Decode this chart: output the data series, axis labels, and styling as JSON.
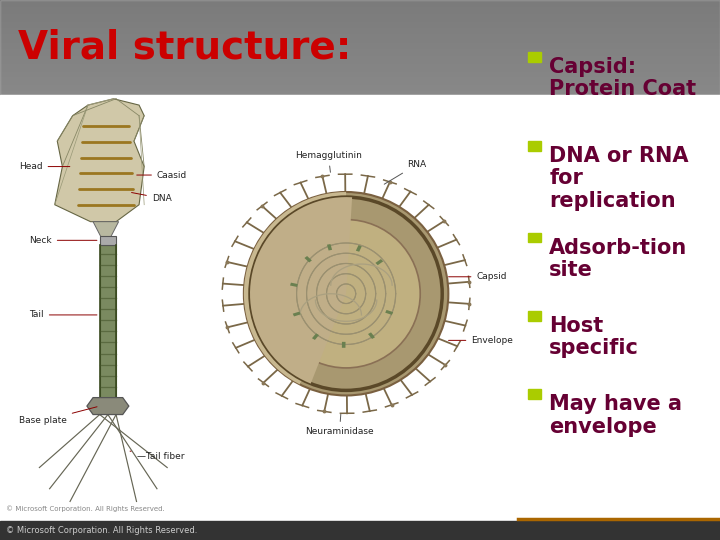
{
  "title": "Viral structure:",
  "title_color": "#cc0000",
  "title_fontsize": 28,
  "bg_gradient_top": "#aaaaaa",
  "bg_gradient_bottom": "#d8d8d8",
  "title_bg_color": "#b0b0b0",
  "content_bg": "#ffffff",
  "right_panel_bg": "#ffffff",
  "bullet_color": "#aacc00",
  "text_color": "#660033",
  "bullet_items": [
    "Capsid:\nProtein Coat",
    "DNA or RNA\nfor\nreplication",
    "Adsorb-tion\nsite",
    "Host\nspecific",
    "May have a\nenvelope"
  ],
  "bullet_fontsize": 15,
  "footer_text": "© Microsoft Corporation. All Rights Reserved.",
  "footer_fontsize": 6,
  "footer_bg": "#333333",
  "bottom_line_color": "#aa6600",
  "divider_line_color": "#888888"
}
